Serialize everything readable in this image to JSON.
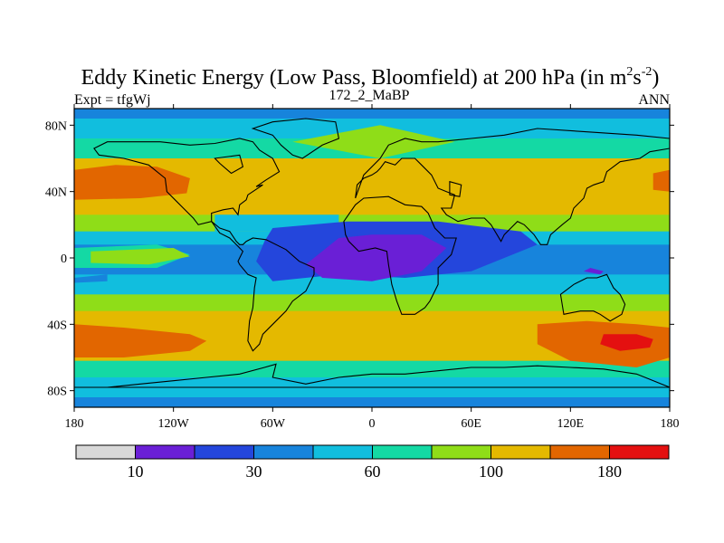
{
  "chart_data": {
    "type": "heatmap",
    "title_main": "Eddy Kinetic Energy (Low Pass, Bloomfield) at 200 hPa (in m",
    "title_sup1": "2",
    "title_mid": "s",
    "title_sup2": "-2",
    "title_end": ")",
    "left_label": "Expt = tfgWj",
    "center_label": "172_2_MaBP",
    "right_label": "ANN",
    "lon_range": [
      -180,
      180
    ],
    "lat_range": [
      -90,
      90
    ],
    "x_ticks": [
      {
        "lon": -180,
        "label": "180"
      },
      {
        "lon": -120,
        "label": "120W"
      },
      {
        "lon": -60,
        "label": "60W"
      },
      {
        "lon": 0,
        "label": "0"
      },
      {
        "lon": 60,
        "label": "60E"
      },
      {
        "lon": 120,
        "label": "120E"
      },
      {
        "lon": 180,
        "label": "180"
      }
    ],
    "y_ticks": [
      {
        "lat": 80,
        "label": "80N"
      },
      {
        "lat": 40,
        "label": "40N"
      },
      {
        "lat": 0,
        "label": "0"
      },
      {
        "lat": -40,
        "label": "40S"
      },
      {
        "lat": -80,
        "label": "80S"
      }
    ],
    "levels": [
      0,
      10,
      20,
      30,
      45,
      60,
      80,
      100,
      140,
      180,
      220
    ],
    "colorbar_colors": [
      "#d8d8d8",
      "#6a1fd6",
      "#2446dc",
      "#1784dc",
      "#11bede",
      "#14d9a4",
      "#8fdd18",
      "#e4b900",
      "#e26600",
      "#e41010"
    ],
    "colorbar_labels": [
      {
        "level_index": 1,
        "label": "10"
      },
      {
        "level_index": 3,
        "label": "30"
      },
      {
        "level_index": 5,
        "label": "60"
      },
      {
        "level_index": 7,
        "label": "100"
      },
      {
        "level_index": 9,
        "label": "180"
      }
    ],
    "lat_bands": [
      {
        "lat_from": 90,
        "lat_to": 84,
        "value": 35
      },
      {
        "lat_from": 84,
        "lat_to": 72,
        "value": 50
      },
      {
        "lat_from": 72,
        "lat_to": 60,
        "value": 70
      },
      {
        "lat_from": 60,
        "lat_to": 26,
        "value": 120
      },
      {
        "lat_from": 26,
        "lat_to": 16,
        "value": 90
      },
      {
        "lat_from": 16,
        "lat_to": 8,
        "value": 52
      },
      {
        "lat_from": 8,
        "lat_to": -10,
        "value": 38
      },
      {
        "lat_from": -10,
        "lat_to": -22,
        "value": 50
      },
      {
        "lat_from": -22,
        "lat_to": -32,
        "value": 90
      },
      {
        "lat_from": -32,
        "lat_to": -62,
        "value": 120
      },
      {
        "lat_from": -62,
        "lat_to": -72,
        "value": 70
      },
      {
        "lat_from": -72,
        "lat_to": -84,
        "value": 50
      },
      {
        "lat_from": -84,
        "lat_to": -90,
        "value": 35
      }
    ],
    "regions": [
      {
        "value": 90,
        "lon": [
          -48,
          5,
          50,
          5
        ],
        "lat": [
          70,
          60,
          70,
          80
        ]
      },
      {
        "value": 52,
        "lon": [
          -95,
          -20,
          -20,
          -95
        ],
        "lat": [
          26,
          26,
          16,
          16
        ]
      },
      {
        "value": 25,
        "lon": [
          -65,
          -60,
          -15,
          40,
          90,
          100,
          60,
          20,
          -20,
          -60,
          -70
        ],
        "lat": [
          10,
          18,
          22,
          22,
          16,
          8,
          -8,
          -12,
          -10,
          -14,
          -2
        ]
      },
      {
        "value": 12,
        "lon": [
          -20,
          0,
          30,
          45,
          30,
          0,
          -30,
          -40
        ],
        "lat": [
          12,
          14,
          14,
          6,
          -8,
          -14,
          -12,
          -4
        ]
      },
      {
        "value": 12,
        "lon": [
          128,
          132,
          140,
          138
        ],
        "lat": [
          -8,
          -6,
          -8,
          -10
        ]
      },
      {
        "value": 70,
        "lon": [
          -180,
          -130,
          -110,
          -130,
          -180
        ],
        "lat": [
          6,
          8,
          2,
          -6,
          -6
        ]
      },
      {
        "value": 90,
        "lon": [
          -170,
          -120,
          -110,
          -135,
          -170
        ],
        "lat": [
          4,
          6,
          1,
          -4,
          -3
        ]
      },
      {
        "value": 160,
        "lon": [
          -180,
          -155,
          -130,
          -110,
          -112,
          -140,
          -180
        ],
        "lat": [
          53,
          56,
          55,
          48,
          39,
          36,
          35
        ]
      },
      {
        "value": 160,
        "lon": [
          170,
          180,
          180,
          170
        ],
        "lat": [
          51,
          53,
          40,
          41
        ]
      },
      {
        "value": 160,
        "lon": [
          -180,
          -150,
          -110,
          -100,
          -110,
          -150,
          -180
        ],
        "lat": [
          -40,
          -42,
          -46,
          -50,
          -56,
          -60,
          -60
        ]
      },
      {
        "value": 160,
        "lon": [
          100,
          130,
          160,
          180,
          180,
          160,
          120,
          100
        ],
        "lat": [
          -40,
          -38,
          -40,
          -42,
          -60,
          -66,
          -62,
          -52
        ]
      },
      {
        "value": 200,
        "lon": [
          140,
          160,
          170,
          168,
          150,
          138
        ],
        "lat": [
          -46,
          -46,
          -49,
          -54,
          -56,
          -52
        ]
      },
      {
        "value": 38,
        "lon": [
          -180,
          -160,
          -160,
          -180
        ],
        "lat": [
          -12,
          -10,
          -14,
          -15
        ]
      }
    ],
    "coastlines": [
      {
        "name": "north-america",
        "lon": [
          -168,
          -160,
          -140,
          -128,
          -110,
          -95,
          -80,
          -72,
          -68,
          -60,
          -56,
          -64,
          -70,
          -66,
          -75,
          -76,
          -80,
          -81,
          -84,
          -90,
          -97,
          -97,
          -105,
          -108,
          -114,
          -118,
          -124,
          -125,
          -135,
          -150,
          -165,
          -168
        ],
        "lat": [
          66,
          70,
          70,
          70,
          68,
          69,
          72,
          70,
          65,
          60,
          52,
          47,
          43,
          44,
          38,
          35,
          32,
          26,
          30,
          29,
          27,
          22,
          20,
          24,
          30,
          34,
          40,
          48,
          56,
          60,
          62,
          66
        ]
      },
      {
        "name": "central-south-america",
        "lon": [
          -97,
          -92,
          -86,
          -82,
          -80,
          -78,
          -76,
          -72,
          -64,
          -52,
          -44,
          -35,
          -35,
          -40,
          -48,
          -52,
          -58,
          -66,
          -68,
          -72,
          -75,
          -74,
          -72,
          -71,
          -70,
          -75,
          -80,
          -81,
          -80,
          -78,
          -82,
          -86,
          -92,
          -97
        ],
        "lat": [
          22,
          18,
          16,
          10,
          8,
          8,
          10,
          12,
          11,
          5,
          -2,
          -6,
          -10,
          -20,
          -26,
          -32,
          -38,
          -46,
          -52,
          -56,
          -50,
          -38,
          -30,
          -18,
          -12,
          -10,
          -4,
          -2,
          0,
          4,
          8,
          12,
          15,
          22
        ]
      },
      {
        "name": "greenland",
        "lon": [
          -72,
          -60,
          -40,
          -22,
          -20,
          -30,
          -42,
          -48,
          -55,
          -60,
          -72
        ],
        "lat": [
          78,
          82,
          84,
          82,
          72,
          68,
          60,
          62,
          68,
          74,
          78
        ]
      },
      {
        "name": "eurasia",
        "lon": [
          -10,
          -9,
          -5,
          0,
          3,
          5,
          8,
          14,
          18,
          26,
          30,
          36,
          40,
          45,
          50,
          48,
          42,
          45,
          52,
          60,
          68,
          72,
          78,
          80,
          88,
          92,
          98,
          102,
          106,
          108,
          115,
          120,
          122,
          128,
          130,
          134,
          140,
          142,
          150,
          162,
          168,
          180,
          180,
          160,
          130,
          100,
          80,
          60,
          40,
          30,
          20,
          10,
          5,
          -5,
          -10
        ],
        "lat": [
          36,
          44,
          48,
          50,
          52,
          54,
          58,
          56,
          60,
          60,
          56,
          50,
          42,
          40,
          38,
          30,
          30,
          26,
          22,
          24,
          24,
          20,
          10,
          14,
          22,
          20,
          14,
          8,
          8,
          14,
          20,
          24,
          30,
          36,
          42,
          44,
          46,
          52,
          58,
          60,
          64,
          66,
          72,
          74,
          76,
          78,
          74,
          72,
          70,
          70,
          72,
          68,
          60,
          50,
          36
        ]
      },
      {
        "name": "africa",
        "lon": [
          -17,
          -10,
          -5,
          10,
          20,
          30,
          34,
          38,
          44,
          51,
          48,
          40,
          40,
          35,
          32,
          26,
          18,
          15,
          12,
          10,
          9,
          2,
          -8,
          -14,
          -16,
          -17
        ],
        "lat": [
          22,
          32,
          36,
          37,
          32,
          31,
          27,
          18,
          12,
          12,
          2,
          -6,
          -16,
          -26,
          -30,
          -34,
          -34,
          -26,
          -16,
          -4,
          4,
          6,
          4,
          10,
          14,
          22
        ]
      },
      {
        "name": "australia",
        "lon": [
          114,
          122,
          130,
          136,
          142,
          146,
          150,
          153,
          151,
          144,
          138,
          134,
          126,
          116,
          114
        ],
        "lat": [
          -22,
          -16,
          -12,
          -12,
          -10,
          -18,
          -22,
          -28,
          -34,
          -38,
          -34,
          -32,
          -32,
          -34,
          -22
        ]
      },
      {
        "name": "antarctica",
        "lon": [
          -180,
          -160,
          -140,
          -120,
          -100,
          -80,
          -65,
          -58,
          -60,
          -40,
          -20,
          0,
          20,
          40,
          60,
          80,
          100,
          120,
          140,
          160,
          180
        ],
        "lat": [
          -78,
          -78,
          -76,
          -74,
          -72,
          -70,
          -66,
          -64,
          -72,
          -76,
          -72,
          -70,
          -70,
          -68,
          -66,
          -66,
          -65,
          -66,
          -67,
          -70,
          -78
        ]
      },
      {
        "name": "caspian-sea",
        "lon": [
          47,
          54,
          53,
          47
        ],
        "lat": [
          46,
          44,
          37,
          38
        ]
      },
      {
        "name": "hudson-bay",
        "lon": [
          -95,
          -80,
          -78,
          -85,
          -92,
          -95
        ],
        "lat": [
          60,
          62,
          55,
          51,
          57,
          60
        ]
      }
    ]
  }
}
